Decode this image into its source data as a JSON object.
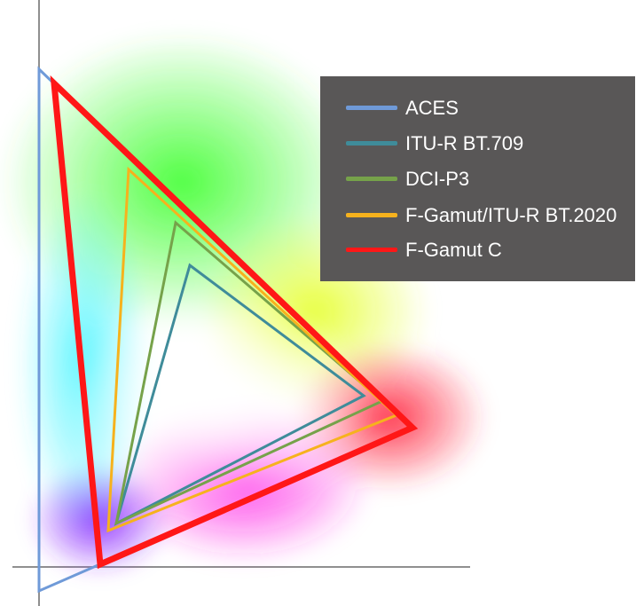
{
  "legend": {
    "items": [
      {
        "label": "ACES",
        "color": "#6f9ad8"
      },
      {
        "label": "ITU-R BT.709",
        "color": "#3f8c9a"
      },
      {
        "label": "DCI-P3",
        "color": "#76a24a"
      },
      {
        "label": "F-Gamut/ITU-R BT.2020",
        "color": "#f6b21d"
      },
      {
        "label": "F-Gamut C",
        "color": "#ff1717"
      }
    ]
  },
  "axes": {
    "color": "#8f8f8f"
  }
}
